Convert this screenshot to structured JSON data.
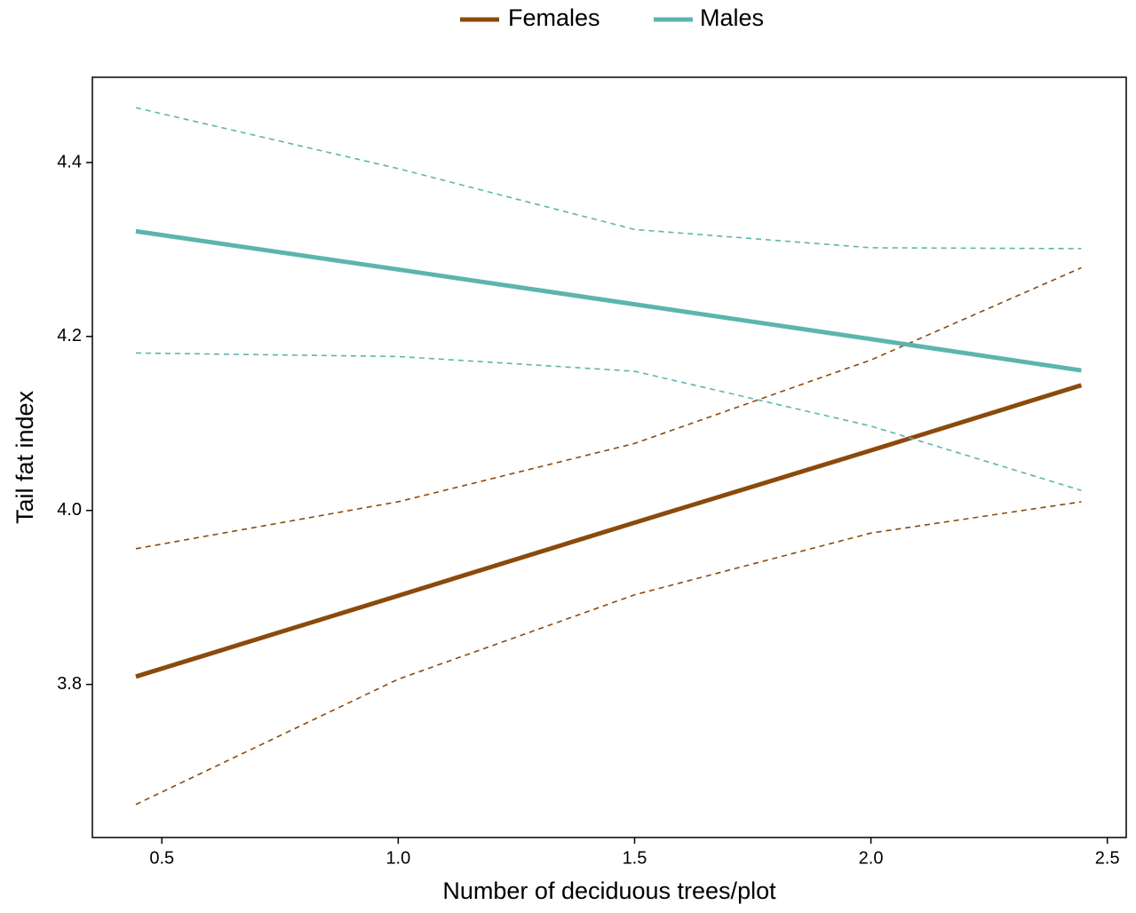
{
  "chart_data": {
    "type": "line",
    "x_label": "Number of deciduous trees/plot",
    "y_label": "Tail fat index",
    "x": [
      0.445,
      1.0,
      1.5,
      2.0,
      2.445
    ],
    "series": [
      {
        "name": "Females",
        "color": "#8b4a0c",
        "values": [
          3.809,
          3.902,
          3.986,
          4.069,
          4.144
        ],
        "lower": [
          3.662,
          3.806,
          3.903,
          3.974,
          4.01
        ],
        "upper": [
          3.956,
          4.01,
          4.077,
          4.173,
          4.279
        ]
      },
      {
        "name": "Males",
        "color": "#5cb5ad",
        "values": [
          4.321,
          4.277,
          4.237,
          4.197,
          4.161
        ],
        "lower": [
          4.181,
          4.177,
          4.16,
          4.097,
          4.023
        ],
        "upper": [
          4.463,
          4.393,
          4.323,
          4.302,
          4.301
        ]
      }
    ],
    "xlim": [
      0.353,
      2.54
    ],
    "ylim": [
      3.624,
      4.498
    ],
    "xticks": [
      0.5,
      {
        "value": 1,
        "label": "1.0"
      },
      1.5,
      {
        "value": 2,
        "label": "2.0"
      },
      2.5
    ],
    "yticks": [
      3.8,
      {
        "value": 4,
        "label": "4.0"
      },
      4.2,
      4.4
    ],
    "legend": "top"
  }
}
